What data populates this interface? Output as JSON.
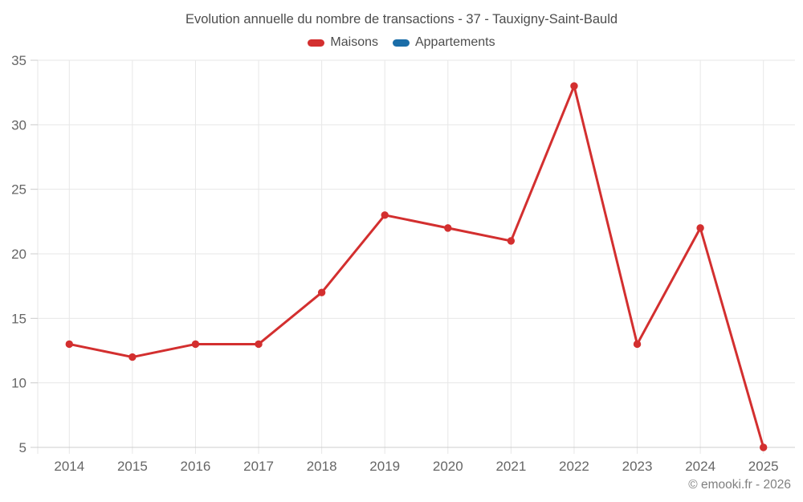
{
  "chart_data": {
    "type": "line",
    "title": "Evolution annuelle du nombre de transactions - 37 - Tauxigny-Saint-Bauld",
    "xlabel": "",
    "ylabel": "",
    "categories": [
      "2014",
      "2015",
      "2016",
      "2017",
      "2018",
      "2019",
      "2020",
      "2021",
      "2022",
      "2023",
      "2024",
      "2025"
    ],
    "series": [
      {
        "name": "Maisons",
        "color": "#d32f2f",
        "values": [
          13,
          12,
          13,
          13,
          17,
          23,
          22,
          21,
          33,
          13,
          22,
          5
        ]
      },
      {
        "name": "Appartements",
        "color": "#1a6da8",
        "values": []
      }
    ],
    "ylim": [
      5,
      35
    ],
    "yticks": [
      5,
      10,
      15,
      20,
      25,
      30,
      35
    ],
    "grid": true,
    "legend_position": "top"
  },
  "footer": {
    "credit": "© emooki.fr - 2026"
  },
  "colors": {
    "grid": "#e7e7e7",
    "axis": "#cccccc",
    "tick_label": "#666666",
    "title_text": "#4d4d4d",
    "footer_text": "#808080",
    "background": "#ffffff"
  }
}
